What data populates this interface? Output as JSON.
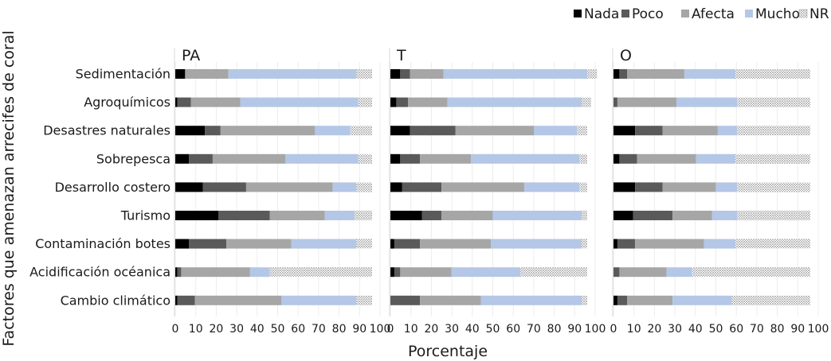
{
  "chart_data": {
    "type": "bar",
    "stacked": true,
    "orientation": "horizontal",
    "ylabel": "Factores que amenazan arrecifes de coral",
    "xlabel": "Porcentaje",
    "xlim": [
      0,
      100
    ],
    "xticks": [
      "0",
      "10",
      "20",
      "30",
      "40",
      "50",
      "60",
      "70",
      "80",
      "90",
      "100"
    ],
    "legend_position": "top-right",
    "categories": [
      "Sedimentación",
      "Agroquímicos",
      "Desastres naturales",
      "Sobrepesca",
      "Desarrollo costero",
      "Turismo",
      "Contaminación botes",
      "Acidificación océanica",
      "Cambio climático"
    ],
    "series": [
      {
        "name": "Nada",
        "color": "#000000"
      },
      {
        "name": "Poco",
        "color": "#5a5a5a"
      },
      {
        "name": "Afecta",
        "color": "#a6a6a6"
      },
      {
        "name": "Mucho",
        "color": "#b4c7e7"
      },
      {
        "name": "NR",
        "color": "#d0d0d0",
        "pattern": "dots"
      }
    ],
    "panels": [
      {
        "title": "PA",
        "values": [
          [
            5,
            0,
            22,
            65,
            8
          ],
          [
            1,
            7,
            25,
            60,
            7
          ],
          [
            15,
            8,
            48,
            18,
            11
          ],
          [
            7,
            12,
            37,
            37,
            7
          ],
          [
            14,
            22,
            44,
            12,
            8
          ],
          [
            22,
            26,
            28,
            15,
            9
          ],
          [
            7,
            19,
            33,
            33,
            8
          ],
          [
            1,
            2,
            35,
            10,
            52
          ],
          [
            1,
            9,
            44,
            38,
            8
          ]
        ]
      },
      {
        "title": "T",
        "values": [
          [
            5,
            5,
            17,
            73,
            5
          ],
          [
            3,
            6,
            20,
            68,
            5
          ],
          [
            10,
            23,
            40,
            22,
            5
          ],
          [
            5,
            10,
            26,
            55,
            4
          ],
          [
            6,
            20,
            42,
            28,
            4
          ],
          [
            16,
            10,
            26,
            45,
            3
          ],
          [
            2,
            13,
            36,
            46,
            3
          ],
          [
            2,
            3,
            26,
            35,
            34
          ],
          [
            0,
            15,
            31,
            51,
            3
          ]
        ]
      },
      {
        "title": "O",
        "values": [
          [
            3,
            4,
            29,
            26,
            38
          ],
          [
            0,
            2,
            30,
            31,
            37
          ],
          [
            11,
            14,
            28,
            10,
            37
          ],
          [
            3,
            9,
            30,
            20,
            38
          ],
          [
            11,
            14,
            27,
            11,
            37
          ],
          [
            10,
            20,
            20,
            13,
            37
          ],
          [
            2,
            9,
            35,
            16,
            38
          ],
          [
            0,
            3,
            24,
            13,
            60
          ],
          [
            2,
            5,
            23,
            30,
            40
          ]
        ]
      }
    ]
  }
}
